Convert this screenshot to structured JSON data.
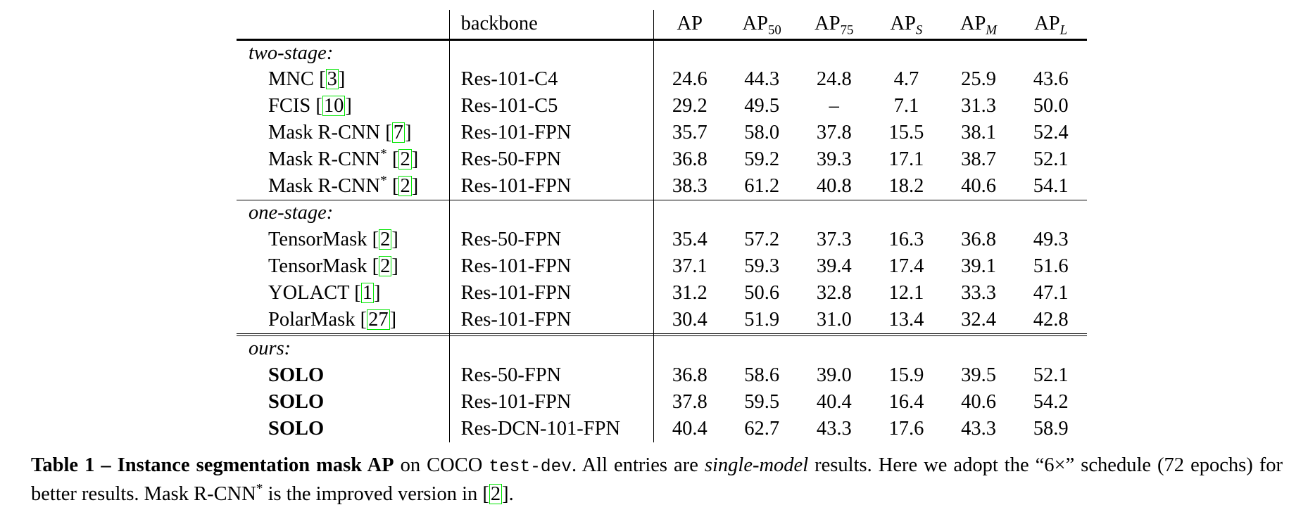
{
  "colors": {
    "citation_box_green": "#00e400",
    "text": "#000000",
    "background": "#ffffff"
  },
  "table": {
    "header": {
      "backbone_label": "backbone",
      "metric_headers": [
        {
          "base": "AP",
          "sub": "",
          "italic_sub": false
        },
        {
          "base": "AP",
          "sub": "50",
          "italic_sub": false
        },
        {
          "base": "AP",
          "sub": "75",
          "italic_sub": false
        },
        {
          "base": "AP",
          "sub": "S",
          "italic_sub": true
        },
        {
          "base": "AP",
          "sub": "M",
          "italic_sub": true
        },
        {
          "base": "AP",
          "sub": "L",
          "italic_sub": true
        }
      ]
    },
    "sections": [
      {
        "label": "two-stage:",
        "separator": "none",
        "rows": [
          {
            "method": "MNC",
            "sup": "",
            "cite": "3",
            "bold": false,
            "backbone": "Res-101-C4",
            "values": [
              "24.6",
              "44.3",
              "24.8",
              "4.7",
              "25.9",
              "43.6"
            ]
          },
          {
            "method": "FCIS",
            "sup": "",
            "cite": "10",
            "bold": false,
            "backbone": "Res-101-C5",
            "values": [
              "29.2",
              "49.5",
              "–",
              "7.1",
              "31.3",
              "50.0"
            ]
          },
          {
            "method": "Mask R-CNN",
            "sup": "",
            "cite": "7",
            "bold": false,
            "backbone": "Res-101-FPN",
            "values": [
              "35.7",
              "58.0",
              "37.8",
              "15.5",
              "38.1",
              "52.4"
            ]
          },
          {
            "method": "Mask R-CNN",
            "sup": "*",
            "cite": "2",
            "bold": false,
            "backbone": "Res-50-FPN",
            "values": [
              "36.8",
              "59.2",
              "39.3",
              "17.1",
              "38.7",
              "52.1"
            ]
          },
          {
            "method": "Mask R-CNN",
            "sup": "*",
            "cite": "2",
            "bold": false,
            "backbone": "Res-101-FPN",
            "values": [
              "38.3",
              "61.2",
              "40.8",
              "18.2",
              "40.6",
              "54.1"
            ]
          }
        ]
      },
      {
        "label": "one-stage:",
        "separator": "single",
        "rows": [
          {
            "method": "TensorMask",
            "sup": "",
            "cite": "2",
            "bold": false,
            "backbone": "Res-50-FPN",
            "values": [
              "35.4",
              "57.2",
              "37.3",
              "16.3",
              "36.8",
              "49.3"
            ]
          },
          {
            "method": "TensorMask",
            "sup": "",
            "cite": "2",
            "bold": false,
            "backbone": "Res-101-FPN",
            "values": [
              "37.1",
              "59.3",
              "39.4",
              "17.4",
              "39.1",
              "51.6"
            ]
          },
          {
            "method": "YOLACT",
            "sup": "",
            "cite": "1",
            "bold": false,
            "backbone": "Res-101-FPN",
            "values": [
              "31.2",
              "50.6",
              "32.8",
              "12.1",
              "33.3",
              "47.1"
            ]
          },
          {
            "method": "PolarMask",
            "sup": "",
            "cite": "27",
            "bold": false,
            "backbone": "Res-101-FPN",
            "values": [
              "30.4",
              "51.9",
              "31.0",
              "13.4",
              "32.4",
              "42.8"
            ]
          }
        ]
      },
      {
        "label": "ours:",
        "separator": "double",
        "rows": [
          {
            "method": "SOLO",
            "sup": "",
            "cite": "",
            "bold": true,
            "backbone": "Res-50-FPN",
            "values": [
              "36.8",
              "58.6",
              "39.0",
              "15.9",
              "39.5",
              "52.1"
            ]
          },
          {
            "method": "SOLO",
            "sup": "",
            "cite": "",
            "bold": true,
            "backbone": "Res-101-FPN",
            "values": [
              "37.8",
              "59.5",
              "40.4",
              "16.4",
              "40.6",
              "54.2"
            ]
          },
          {
            "method": "SOLO",
            "sup": "",
            "cite": "",
            "bold": true,
            "backbone": "Res-DCN-101-FPN",
            "values": [
              "40.4",
              "62.7",
              "43.3",
              "17.6",
              "43.3",
              "58.9"
            ]
          }
        ]
      }
    ]
  },
  "caption": {
    "title_bold": "Table 1 – Instance segmentation mask AP",
    "seg1": " on COCO ",
    "mono": "test-dev",
    "seg2": ". All entries are ",
    "italic": "single-model",
    "seg3": " results. Here we adopt the “6×” schedule (72 epochs) for better results. Mask R-CNN",
    "sup": "*",
    "seg4": " is the improved version in [",
    "cite": "2",
    "seg5": "]."
  }
}
